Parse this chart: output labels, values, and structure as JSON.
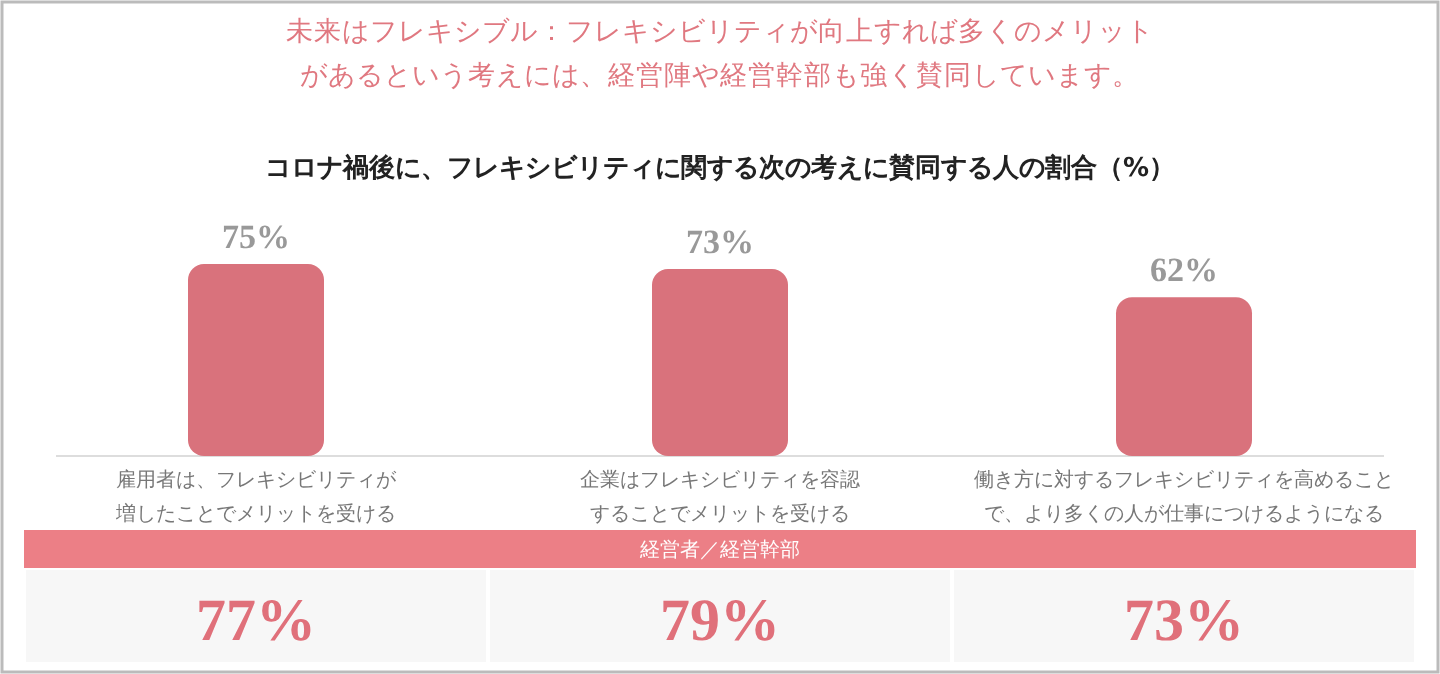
{
  "chart_data": {
    "type": "bar",
    "title": "未来はフレキシブル：フレキシビリティが向上すれば多くのメリットがあるという考えには、経営陣や経営幹部も強く賛同しています。",
    "subtitle": "コロナ禍後に、フレキシビリティに関する次の考えに賛同する人の割合（%）",
    "categories": [
      "雇用者は、フレキシビリティが増したことでメリットを受ける",
      "企業はフレキシビリティを容認することでメリットを受ける",
      "働き方に対するフレキシビリティを高めることで、より多くの人が仕事につけるようになる"
    ],
    "values": [
      75,
      73,
      62
    ],
    "value_labels": [
      "75%",
      "73%",
      "62%"
    ],
    "color": "#d9727c",
    "annotations": [
      "経営者／経営幹部",
      "77%",
      "79%",
      "73%"
    ]
  }
}
